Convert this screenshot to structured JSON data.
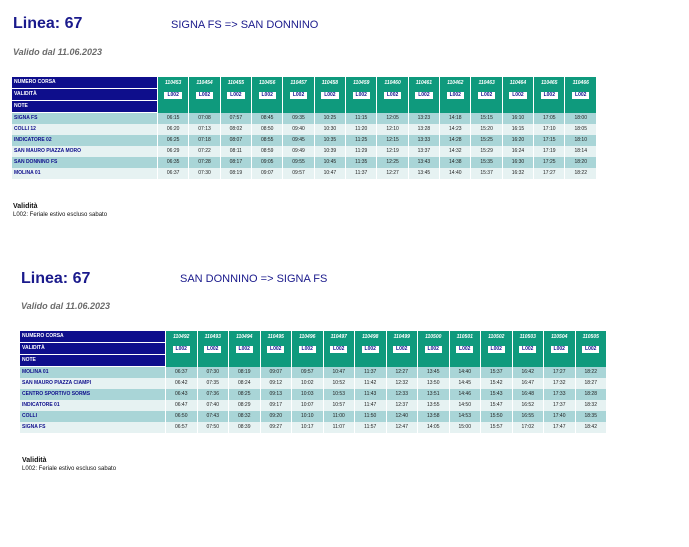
{
  "timetables": [
    {
      "line_title": "Linea: 67",
      "route": "SIGNA FS => SAN DONNINO",
      "valid_from": "Valido dal 11.06.2023",
      "header_labels": {
        "run": "NUMERO CORSA",
        "validity": "VALIDITÀ",
        "notes": "NOTE"
      },
      "runs": [
        "110453",
        "110454",
        "110455",
        "110456",
        "110457",
        "110458",
        "110459",
        "110460",
        "110461",
        "110462",
        "110463",
        "110464",
        "110465",
        "110466"
      ],
      "validity": [
        "L002",
        "L002",
        "L002",
        "L002",
        "L002",
        "L002",
        "L002",
        "L002",
        "L002",
        "L002",
        "L002",
        "L002",
        "L002",
        "L002"
      ],
      "stops": [
        {
          "name": "SIGNA FS",
          "times": [
            "06:15",
            "07:08",
            "07:57",
            "08:45",
            "09:35",
            "10:25",
            "11:15",
            "12:05",
            "13:23",
            "14:18",
            "15:15",
            "16:10",
            "17:05",
            "18:00"
          ]
        },
        {
          "name": "COLLI 12",
          "times": [
            "06:20",
            "07:13",
            "08:02",
            "08:50",
            "09:40",
            "10:30",
            "11:20",
            "12:10",
            "13:28",
            "14:23",
            "15:20",
            "16:15",
            "17:10",
            "18:05"
          ]
        },
        {
          "name": "INDICATORE 02",
          "times": [
            "06:25",
            "07:18",
            "08:07",
            "08:55",
            "09:45",
            "10:35",
            "11:25",
            "12:15",
            "13:33",
            "14:28",
            "15:25",
            "16:20",
            "17:15",
            "18:10"
          ]
        },
        {
          "name": "SAN MAURO PIAZZA MORO",
          "times": [
            "06:29",
            "07:22",
            "08:11",
            "08:59",
            "09:49",
            "10:39",
            "11:29",
            "12:19",
            "13:37",
            "14:32",
            "15:29",
            "16:24",
            "17:19",
            "18:14"
          ]
        },
        {
          "name": "SAN DONNINO FS",
          "times": [
            "06:35",
            "07:28",
            "08:17",
            "09:05",
            "09:55",
            "10:45",
            "11:35",
            "12:25",
            "13:43",
            "14:38",
            "15:35",
            "16:30",
            "17:25",
            "18:20"
          ]
        },
        {
          "name": "MOLINA 01",
          "times": [
            "06:37",
            "07:30",
            "08:19",
            "09:07",
            "09:57",
            "10:47",
            "11:37",
            "12:27",
            "13:45",
            "14:40",
            "15:37",
            "16:32",
            "17:27",
            "18:22"
          ]
        }
      ],
      "legend_title": "Validità",
      "legend_text": "L002: Feriale estivo escluso sabato"
    },
    {
      "line_title": "Linea: 67",
      "route": "SAN DONNINO => SIGNA FS",
      "valid_from": "Valido dal 11.06.2023",
      "header_labels": {
        "run": "NUMERO CORSA",
        "validity": "VALIDITÀ",
        "notes": "NOTE"
      },
      "runs": [
        "110492",
        "110493",
        "110494",
        "110495",
        "110496",
        "110497",
        "110498",
        "110499",
        "110500",
        "110501",
        "110502",
        "110503",
        "110504",
        "110505"
      ],
      "validity": [
        "L002",
        "L002",
        "L002",
        "L002",
        "L002",
        "L002",
        "L002",
        "L002",
        "L002",
        "L002",
        "L002",
        "L002",
        "L002",
        "L002"
      ],
      "stops": [
        {
          "name": "MOLINA 01",
          "times": [
            "06:37",
            "07:30",
            "08:19",
            "09:07",
            "09:57",
            "10:47",
            "11:37",
            "12:27",
            "13:45",
            "14:40",
            "15:37",
            "16:42",
            "17:27",
            "18:22"
          ]
        },
        {
          "name": "SAN MAURO PIAZZA CIAMPI",
          "times": [
            "06:42",
            "07:35",
            "08:24",
            "09:12",
            "10:02",
            "10:52",
            "11:42",
            "12:32",
            "13:50",
            "14:45",
            "15:42",
            "16:47",
            "17:32",
            "18:27"
          ]
        },
        {
          "name": "CENTRO SPORTIVO SORMS",
          "times": [
            "06:43",
            "07:36",
            "08:25",
            "09:13",
            "10:03",
            "10:53",
            "11:43",
            "12:33",
            "13:51",
            "14:46",
            "15:43",
            "16:48",
            "17:33",
            "18:28"
          ]
        },
        {
          "name": "INDICATORE 01",
          "times": [
            "06:47",
            "07:40",
            "08:29",
            "09:17",
            "10:07",
            "10:57",
            "11:47",
            "12:37",
            "13:55",
            "14:50",
            "15:47",
            "16:52",
            "17:37",
            "18:32"
          ]
        },
        {
          "name": "COLLI",
          "times": [
            "06:50",
            "07:43",
            "08:32",
            "09:20",
            "10:10",
            "11:00",
            "11:50",
            "12:40",
            "13:58",
            "14:53",
            "15:50",
            "16:55",
            "17:40",
            "18:35"
          ]
        },
        {
          "name": "SIGNA FS",
          "times": [
            "06:57",
            "07:50",
            "08:39",
            "09:27",
            "10:17",
            "11:07",
            "11:57",
            "12:47",
            "14:05",
            "15:00",
            "15:57",
            "17:02",
            "17:47",
            "18:42"
          ]
        }
      ],
      "legend_title": "Validità",
      "legend_text": "L002: Feriale estivo escluso sabato"
    }
  ]
}
